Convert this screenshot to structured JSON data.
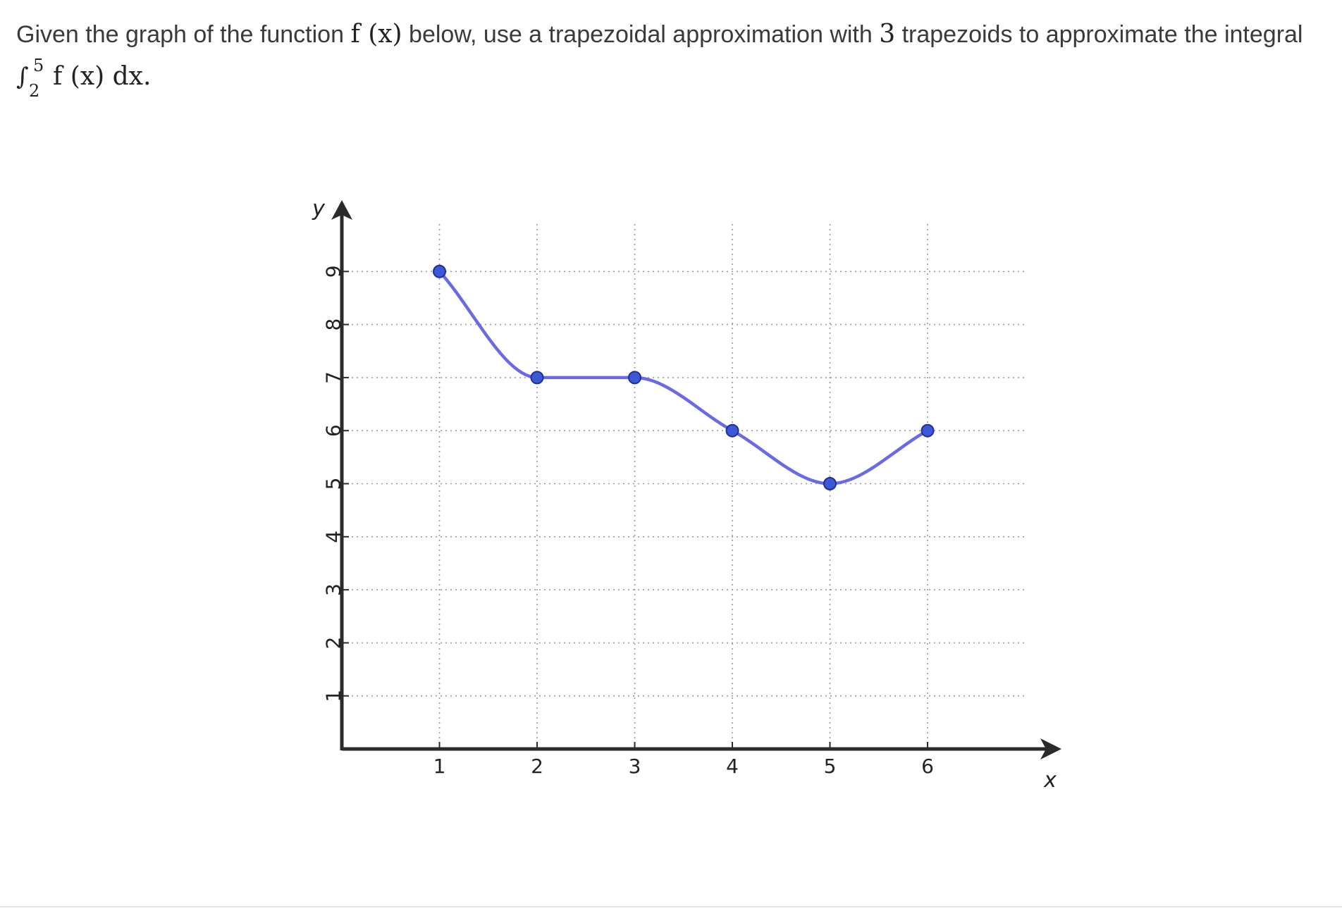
{
  "question": {
    "text_before": "Given the graph of the function ",
    "func": "f (x)",
    "text_middle": " below, use a trapezoidal approximation with ",
    "n": "3",
    "text_after": " trapezoids to approximate the integral",
    "integral": {
      "sign": "∫",
      "upper": "5",
      "lower": "2",
      "body": "f (x) dx."
    }
  },
  "chart_data": {
    "type": "line",
    "xlabel": "x",
    "ylabel": "y",
    "xlim": [
      0,
      7.5
    ],
    "ylim": [
      0,
      9.9
    ],
    "xticks": [
      1,
      2,
      3,
      4,
      5,
      6
    ],
    "yticks": [
      1,
      2,
      3,
      4,
      5,
      6,
      7,
      8,
      9
    ],
    "grid": "dotted",
    "points": [
      {
        "x": 1,
        "y": 9
      },
      {
        "x": 2,
        "y": 7
      },
      {
        "x": 3,
        "y": 7
      },
      {
        "x": 4,
        "y": 6
      },
      {
        "x": 5,
        "y": 5
      },
      {
        "x": 6,
        "y": 6
      }
    ],
    "line_color": "#6a6ae8",
    "marker_color": "#3b59d6",
    "marker_edge": "#1f2f8f"
  }
}
